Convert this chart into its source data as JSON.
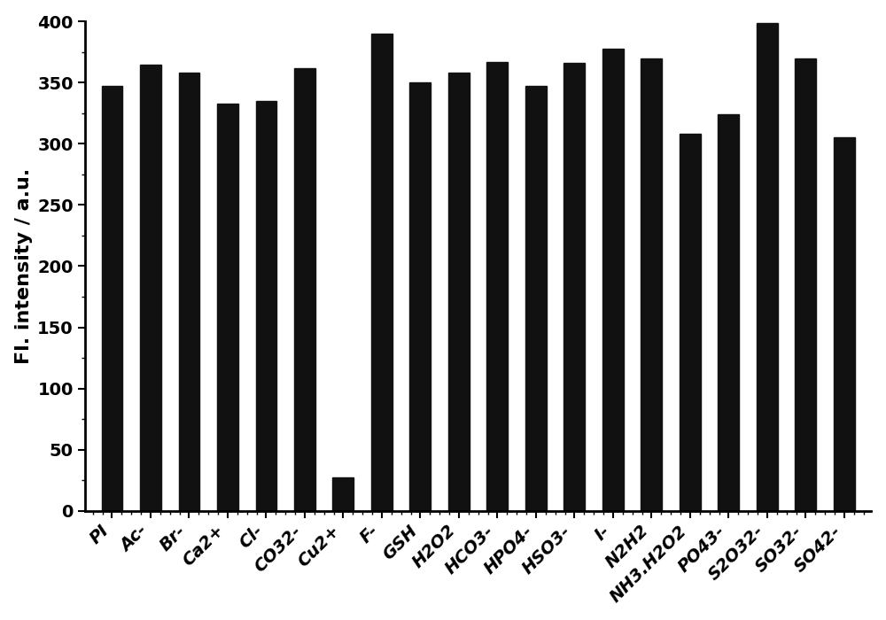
{
  "categories": [
    "PI",
    "Ac-",
    "Br-",
    "Ca2+",
    "Cl-",
    "CO32-",
    "Cu2+",
    "F-",
    "GSH",
    "H2O2",
    "HCO3-",
    "HPO4-",
    "HSO3-",
    "I-",
    "N2H2",
    "NH3.H2O2",
    "PO43-",
    "S2O32-",
    "SO32-",
    "SO42-"
  ],
  "values": [
    347,
    365,
    358,
    333,
    335,
    362,
    27,
    390,
    350,
    358,
    367,
    347,
    366,
    378,
    370,
    308,
    324,
    399,
    370,
    305
  ],
  "bar_color": "#111111",
  "ylabel": "Fl. intensity / a.u.",
  "ylim": [
    0,
    400
  ],
  "yticks": [
    0,
    50,
    100,
    150,
    200,
    250,
    300,
    350,
    400
  ],
  "background_color": "#ffffff",
  "tick_label_fontsize": 14,
  "ylabel_fontsize": 16,
  "bar_width": 0.55
}
